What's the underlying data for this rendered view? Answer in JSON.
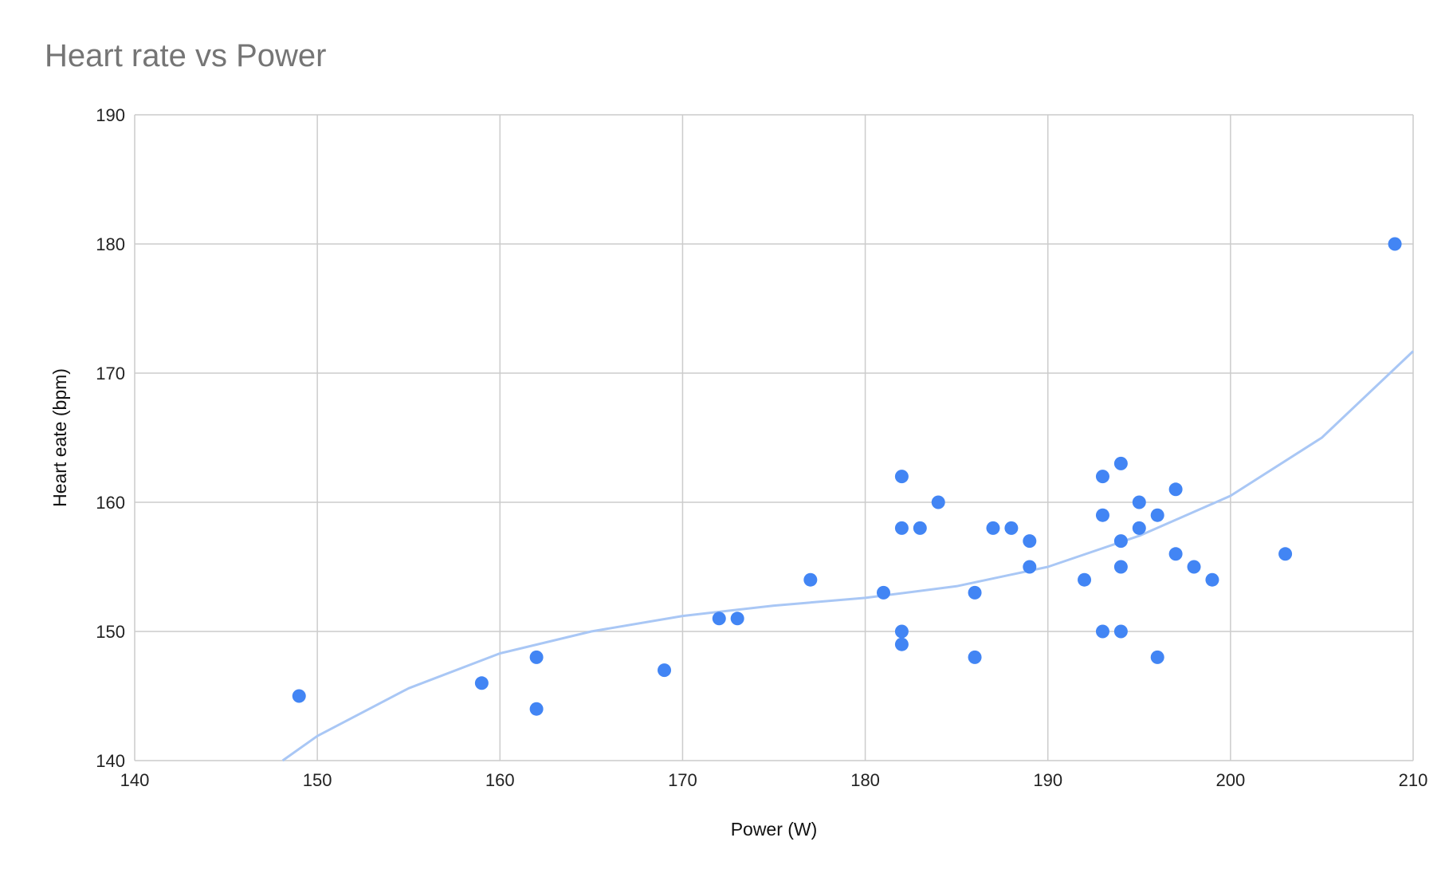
{
  "chart_data": {
    "type": "scatter",
    "title": "Heart rate vs Power",
    "xlabel": "Power (W)",
    "ylabel": "Heart eate (bpm)",
    "xlim": [
      140,
      210
    ],
    "ylim": [
      140,
      190
    ],
    "xticks": [
      140,
      150,
      160,
      170,
      180,
      190,
      200,
      210
    ],
    "yticks": [
      140,
      150,
      160,
      170,
      180,
      190
    ],
    "grid": true,
    "legend": "none",
    "colors": {
      "points": "#4285f4",
      "trendline": "#a9c7f5",
      "grid": "#cccccc",
      "title": "#757575"
    },
    "series": [
      {
        "points": [
          [
            149,
            145
          ],
          [
            159,
            146
          ],
          [
            162,
            148
          ],
          [
            162,
            144
          ],
          [
            169,
            147
          ],
          [
            172,
            151
          ],
          [
            173,
            151
          ],
          [
            177,
            154
          ],
          [
            181,
            153
          ],
          [
            182,
            162
          ],
          [
            182,
            158
          ],
          [
            182,
            150
          ],
          [
            182,
            149
          ],
          [
            183,
            158
          ],
          [
            184,
            160
          ],
          [
            186,
            153
          ],
          [
            186,
            148
          ],
          [
            187,
            158
          ],
          [
            188,
            158
          ],
          [
            189,
            157
          ],
          [
            189,
            155
          ],
          [
            192,
            154
          ],
          [
            193,
            162
          ],
          [
            193,
            159
          ],
          [
            193,
            150
          ],
          [
            194,
            163
          ],
          [
            194,
            157
          ],
          [
            194,
            155
          ],
          [
            194,
            150
          ],
          [
            195,
            160
          ],
          [
            195,
            158
          ],
          [
            196,
            159
          ],
          [
            196,
            148
          ],
          [
            197,
            161
          ],
          [
            197,
            156
          ],
          [
            198,
            155
          ],
          [
            199,
            154
          ],
          [
            203,
            156
          ],
          [
            209,
            180
          ]
        ]
      }
    ],
    "trendline": {
      "type": "polynomial",
      "points": [
        [
          148.1,
          140
        ],
        [
          150,
          141.9
        ],
        [
          155,
          145.6
        ],
        [
          160,
          148.3
        ],
        [
          165,
          150.0
        ],
        [
          170,
          151.2
        ],
        [
          175,
          152.0
        ],
        [
          180,
          152.6
        ],
        [
          185,
          153.5
        ],
        [
          190,
          155.0
        ],
        [
          195,
          157.4
        ],
        [
          200,
          160.5
        ],
        [
          205,
          165.0
        ],
        [
          210,
          171.7
        ]
      ]
    }
  }
}
